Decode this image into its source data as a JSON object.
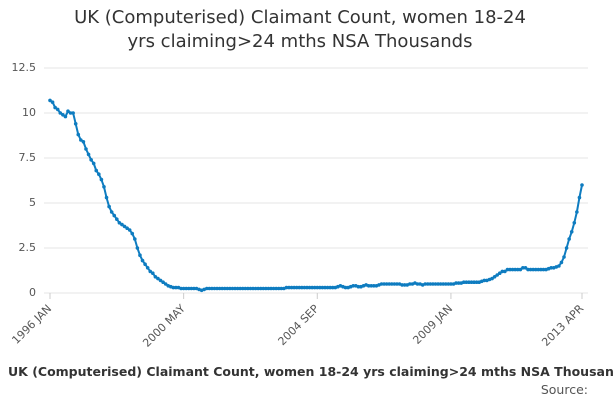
{
  "chart_data": {
    "type": "line",
    "title": "UK (Computerised) Claimant Count, women 18-24 yrs claiming>24 mths NSA Thousands",
    "footer_title": "UK (Computerised) Claimant Count, women 18-24 yrs claiming>24 mths NSA Thousan",
    "source": "Source:",
    "color": "#0e7cc0",
    "grid": true,
    "ylim": [
      0,
      12.5
    ],
    "yticks": [
      0,
      2.5,
      5,
      7.5,
      10,
      12.5
    ],
    "categories": [
      "1996 JAN",
      null,
      null,
      null,
      null,
      null,
      null,
      null,
      null,
      null,
      null,
      null,
      null,
      null,
      null,
      null,
      null,
      null,
      null,
      null,
      null,
      null,
      null,
      null,
      null,
      null,
      null,
      null,
      null,
      null,
      null,
      null,
      null,
      null,
      null,
      null,
      null,
      null,
      null,
      null,
      null,
      null,
      null,
      null,
      null,
      null,
      null,
      null,
      null,
      null,
      null,
      null,
      "2000 MAY",
      null,
      null,
      null,
      null,
      null,
      null,
      null,
      null,
      null,
      null,
      null,
      null,
      null,
      null,
      null,
      null,
      null,
      null,
      null,
      null,
      null,
      null,
      null,
      null,
      null,
      null,
      null,
      null,
      null,
      null,
      null,
      null,
      null,
      null,
      null,
      null,
      null,
      null,
      null,
      null,
      null,
      null,
      null,
      null,
      null,
      null,
      null,
      null,
      null,
      null,
      null,
      "2004 SEP",
      null,
      null,
      null,
      null,
      null,
      null,
      null,
      null,
      null,
      null,
      null,
      null,
      null,
      null,
      null,
      null,
      null,
      null,
      null,
      null,
      null,
      null,
      null,
      null,
      null,
      null,
      null,
      null,
      null,
      null,
      null,
      null,
      null,
      null,
      null,
      null,
      null,
      null,
      null,
      null,
      null,
      null,
      null,
      null,
      null,
      null,
      null,
      null,
      null,
      null,
      null,
      "2009 JAN",
      null,
      null,
      null,
      null,
      null,
      null,
      null,
      null,
      null,
      null,
      null,
      null,
      null,
      null,
      null,
      null,
      null,
      null,
      null,
      null,
      null,
      null,
      null,
      null,
      null,
      null,
      null,
      null,
      null,
      null,
      null,
      null,
      null,
      null,
      null,
      null,
      null,
      null,
      null,
      null,
      null,
      null,
      null,
      null,
      null,
      null,
      null,
      null,
      null,
      null,
      "2013 APR"
    ],
    "values": [
      10.7,
      10.6,
      10.3,
      10.2,
      10.0,
      9.9,
      9.8,
      10.1,
      10.0,
      10.0,
      9.4,
      8.8,
      8.5,
      8.4,
      8.0,
      7.7,
      7.4,
      7.2,
      6.8,
      6.6,
      6.3,
      5.9,
      5.3,
      4.8,
      4.5,
      4.3,
      4.1,
      3.9,
      3.8,
      3.7,
      3.6,
      3.5,
      3.3,
      3.0,
      2.5,
      2.1,
      1.8,
      1.6,
      1.4,
      1.2,
      1.1,
      0.9,
      0.8,
      0.7,
      0.6,
      0.5,
      0.4,
      0.35,
      0.3,
      0.3,
      0.3,
      0.25,
      0.25,
      0.25,
      0.25,
      0.25,
      0.25,
      0.25,
      0.2,
      0.15,
      0.2,
      0.25,
      0.25,
      0.25,
      0.25,
      0.25,
      0.25,
      0.25,
      0.25,
      0.25,
      0.25,
      0.25,
      0.25,
      0.25,
      0.25,
      0.25,
      0.25,
      0.25,
      0.25,
      0.25,
      0.25,
      0.25,
      0.25,
      0.25,
      0.25,
      0.25,
      0.25,
      0.25,
      0.25,
      0.25,
      0.25,
      0.25,
      0.3,
      0.3,
      0.3,
      0.3,
      0.3,
      0.3,
      0.3,
      0.3,
      0.3,
      0.3,
      0.3,
      0.3,
      0.3,
      0.3,
      0.3,
      0.3,
      0.3,
      0.3,
      0.3,
      0.3,
      0.35,
      0.4,
      0.35,
      0.3,
      0.3,
      0.35,
      0.4,
      0.4,
      0.35,
      0.35,
      0.4,
      0.45,
      0.4,
      0.4,
      0.4,
      0.4,
      0.45,
      0.5,
      0.5,
      0.5,
      0.5,
      0.5,
      0.5,
      0.5,
      0.5,
      0.45,
      0.45,
      0.45,
      0.5,
      0.5,
      0.55,
      0.5,
      0.5,
      0.45,
      0.5,
      0.5,
      0.5,
      0.5,
      0.5,
      0.5,
      0.5,
      0.5,
      0.5,
      0.5,
      0.5,
      0.5,
      0.55,
      0.55,
      0.55,
      0.6,
      0.6,
      0.6,
      0.6,
      0.6,
      0.6,
      0.6,
      0.65,
      0.7,
      0.7,
      0.75,
      0.8,
      0.9,
      1.0,
      1.1,
      1.2,
      1.2,
      1.3,
      1.3,
      1.3,
      1.3,
      1.3,
      1.3,
      1.4,
      1.4,
      1.3,
      1.3,
      1.3,
      1.3,
      1.3,
      1.3,
      1.3,
      1.3,
      1.35,
      1.4,
      1.4,
      1.45,
      1.5,
      1.7,
      2.0,
      2.5,
      3.0,
      3.4,
      3.9,
      4.5,
      5.3,
      6.0
    ]
  }
}
